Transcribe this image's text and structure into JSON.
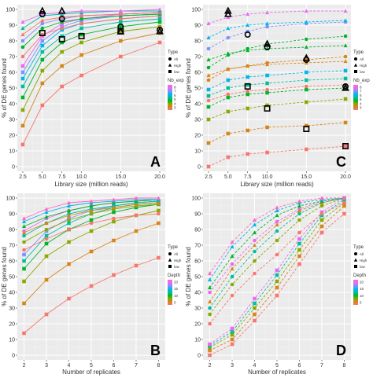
{
  "colors": {
    "panel_bg": "#ebebeb",
    "grid_major": "#ffffff",
    "grid_minor": "#f3f3f3",
    "gradient": [
      "#f8766d",
      "#d6851a",
      "#8ba800",
      "#00b52b",
      "#00bf9e",
      "#00b6eb",
      "#7c92ff",
      "#e76bf3",
      "#ff6ac1"
    ]
  },
  "chart_data": [
    {
      "id": "A",
      "type": "line",
      "panel_label": "A",
      "xlabel": "Library size (million reads)",
      "ylabel": "% of DE genes found",
      "x": [
        2.5,
        5.0,
        7.5,
        10.0,
        15.0,
        20.0
      ],
      "x_tick_labels": [
        "2.5",
        "5.0",
        "7.5",
        "10.0",
        "15.0",
        "20.0"
      ],
      "y_ticks": [
        0,
        10,
        20,
        30,
        40,
        50,
        60,
        70,
        80,
        90,
        100
      ],
      "xlim": [
        1.8,
        20.7
      ],
      "ylim": [
        -3,
        103
      ],
      "line_style": "solid",
      "legend": {
        "type_title": "Type",
        "type_items": [
          {
            "shape": "circle",
            "label": "All"
          },
          {
            "shape": "triangle",
            "label": "High"
          },
          {
            "shape": "square",
            "label": "low"
          }
        ],
        "color_title": "Nb_exp",
        "color_ticks": [
          "8",
          "7",
          "6",
          "5",
          "4",
          "3"
        ]
      },
      "series": [
        {
          "shape": "square",
          "color_index": 0,
          "values": [
            14,
            39,
            51,
            58,
            70,
            79
          ]
        },
        {
          "shape": "square",
          "color_index": 1,
          "values": [
            26,
            53,
            64,
            71,
            80,
            85
          ]
        },
        {
          "shape": "square",
          "color_index": 2,
          "values": [
            36,
            61,
            73,
            79,
            86,
            89
          ]
        },
        {
          "shape": "square",
          "color_index": 3,
          "values": [
            44,
            68,
            79,
            84,
            89,
            92
          ]
        },
        {
          "shape": "square",
          "color_index": 4,
          "values": [
            51,
            73,
            83,
            88,
            92,
            94
          ]
        },
        {
          "shape": "square",
          "color_index": 5,
          "values": [
            56,
            77,
            87,
            91,
            94,
            96
          ]
        },
        {
          "shape": "square",
          "color_index": 6,
          "values": [
            60,
            80,
            89,
            93,
            96,
            97
          ]
        },
        {
          "shape": "square",
          "color_index": 7,
          "values": [
            64,
            83,
            91,
            94,
            97,
            98
          ]
        },
        {
          "shape": "circle",
          "color_index": 0,
          "values": [
            70,
            84,
            88,
            91,
            94,
            96
          ]
        },
        {
          "shape": "circle",
          "color_index": 3,
          "values": [
            76,
            88,
            92,
            94,
            96,
            97
          ]
        },
        {
          "shape": "circle",
          "color_index": 6,
          "values": [
            80,
            91,
            94,
            96,
            97,
            98
          ]
        },
        {
          "shape": "triangle",
          "color_index": 0,
          "values": [
            84,
            93,
            95,
            96,
            97,
            98
          ]
        },
        {
          "shape": "triangle",
          "color_index": 4,
          "values": [
            88,
            96,
            97,
            98,
            99,
            99
          ]
        },
        {
          "shape": "triangle",
          "color_index": 7,
          "values": [
            92,
            97,
            98,
            99,
            99,
            100
          ]
        }
      ],
      "highlighted": [
        {
          "shape": "triangle",
          "x": 5.0,
          "y": 99
        },
        {
          "shape": "triangle",
          "x": 7.5,
          "y": 99
        },
        {
          "shape": "circle",
          "x": 5.0,
          "y": 97
        },
        {
          "shape": "circle",
          "x": 7.5,
          "y": 94
        },
        {
          "shape": "square",
          "x": 5.0,
          "y": 85
        },
        {
          "shape": "square",
          "x": 7.5,
          "y": 81
        },
        {
          "shape": "square",
          "x": 10.0,
          "y": 83
        },
        {
          "shape": "circle",
          "x": 15.0,
          "y": 89
        },
        {
          "shape": "triangle",
          "x": 15.0,
          "y": 86
        },
        {
          "shape": "square",
          "x": 15.0,
          "y": 86
        },
        {
          "shape": "circle",
          "x": 20.0,
          "y": 87
        },
        {
          "shape": "triangle",
          "x": 20.0,
          "y": 86
        }
      ]
    },
    {
      "id": "C",
      "type": "line",
      "panel_label": "C",
      "xlabel": "Library size (million reads)",
      "ylabel": "% of DE genes found",
      "x": [
        2.5,
        5.0,
        7.5,
        10.0,
        15.0,
        20.0
      ],
      "x_tick_labels": [
        "2.5",
        "5.0",
        "7.5",
        "10.0",
        "15.0",
        "20.0"
      ],
      "y_ticks": [
        0,
        10,
        20,
        30,
        40,
        50,
        60,
        70,
        80,
        90,
        100
      ],
      "xlim": [
        1.8,
        20.7
      ],
      "ylim": [
        -3,
        103
      ],
      "line_style": "dashed",
      "legend": {
        "type_title": "Type",
        "type_items": [
          {
            "shape": "circle",
            "label": "All"
          },
          {
            "shape": "triangle",
            "label": "High"
          },
          {
            "shape": "square",
            "label": "low"
          }
        ],
        "color_title": "Nb_exp",
        "color_ticks": [
          "8",
          "7",
          "6",
          "5",
          "4",
          "3"
        ]
      },
      "series": [
        {
          "shape": "square",
          "color_index": 0,
          "values": [
            0,
            6,
            8,
            9,
            11,
            13
          ]
        },
        {
          "shape": "square",
          "color_index": 1,
          "values": [
            15,
            21,
            23,
            25,
            26,
            28
          ]
        },
        {
          "shape": "square",
          "color_index": 2,
          "values": [
            30,
            35,
            37,
            39,
            41,
            43
          ]
        },
        {
          "shape": "square",
          "color_index": 3,
          "values": [
            38,
            44,
            46,
            47,
            49,
            50
          ]
        },
        {
          "shape": "square",
          "color_index": 4,
          "values": [
            45,
            50,
            52,
            53,
            55,
            56
          ]
        },
        {
          "shape": "square",
          "color_index": 5,
          "values": [
            49,
            55,
            57,
            58,
            60,
            61
          ]
        },
        {
          "shape": "circle",
          "color_index": 0,
          "values": [
            42,
            46,
            48,
            49,
            51,
            52
          ]
        },
        {
          "shape": "circle",
          "color_index": 1,
          "values": [
            55,
            62,
            64,
            66,
            68,
            70
          ]
        },
        {
          "shape": "circle",
          "color_index": 3,
          "values": [
            63,
            71,
            75,
            78,
            81,
            83
          ]
        },
        {
          "shape": "circle",
          "color_index": 6,
          "values": [
            75,
            82,
            86,
            89,
            91,
            92
          ]
        },
        {
          "shape": "triangle",
          "color_index": 1,
          "values": [
            58,
            62,
            64,
            65,
            66,
            67
          ]
        },
        {
          "shape": "triangle",
          "color_index": 3,
          "values": [
            68,
            72,
            74,
            75,
            76,
            77
          ]
        },
        {
          "shape": "triangle",
          "color_index": 5,
          "values": [
            82,
            88,
            90,
            91,
            92,
            93
          ]
        },
        {
          "shape": "triangle",
          "color_index": 7,
          "values": [
            91,
            95,
            97,
            98,
            99,
            99
          ]
        }
      ],
      "highlighted": [
        {
          "shape": "triangle",
          "x": 5.0,
          "y": 99
        },
        {
          "shape": "triangle",
          "x": 5.0,
          "y": 97
        },
        {
          "shape": "circle",
          "x": 7.5,
          "y": 84
        },
        {
          "shape": "triangle",
          "x": 10.0,
          "y": 78
        },
        {
          "shape": "circle",
          "x": 10.0,
          "y": 76
        },
        {
          "shape": "square",
          "x": 7.5,
          "y": 51
        },
        {
          "shape": "square",
          "x": 10.0,
          "y": 37
        },
        {
          "shape": "triangle",
          "x": 15.0,
          "y": 69
        },
        {
          "shape": "circle",
          "x": 15.0,
          "y": 68
        },
        {
          "shape": "square",
          "x": 15.0,
          "y": 24
        },
        {
          "shape": "circle",
          "x": 20.0,
          "y": 51
        },
        {
          "shape": "triangle",
          "x": 20.0,
          "y": 50
        },
        {
          "shape": "square",
          "x": 20.0,
          "y": 13
        }
      ]
    },
    {
      "id": "B",
      "type": "line",
      "panel_label": "B",
      "xlabel": "Number of replicates",
      "ylabel": "% of DE genes found",
      "x": [
        2,
        3,
        4,
        5,
        6,
        7,
        8
      ],
      "x_tick_labels": [
        "2",
        "3",
        "4",
        "5",
        "6",
        "7",
        "8"
      ],
      "y_ticks": [
        0,
        10,
        20,
        30,
        40,
        50,
        60,
        70,
        80,
        90,
        100
      ],
      "xlim": [
        1.7,
        8.3
      ],
      "ylim": [
        -3,
        103
      ],
      "line_style": "solid",
      "legend": {
        "type_title": "Type",
        "type_items": [
          {
            "shape": "circle",
            "label": "All"
          },
          {
            "shape": "triangle",
            "label": "High"
          },
          {
            "shape": "square",
            "label": "low"
          }
        ],
        "color_title": "Depth",
        "color_ticks": [
          "20",
          "15",
          "10",
          "5"
        ]
      },
      "series": [
        {
          "shape": "square",
          "color_index": 0,
          "values": [
            14,
            26,
            36,
            44,
            51,
            57,
            62
          ]
        },
        {
          "shape": "square",
          "color_index": 1,
          "values": [
            33,
            48,
            58,
            66,
            73,
            79,
            84
          ]
        },
        {
          "shape": "square",
          "color_index": 2,
          "values": [
            47,
            63,
            72,
            79,
            85,
            89,
            92
          ]
        },
        {
          "shape": "square",
          "color_index": 3,
          "values": [
            55,
            71,
            80,
            86,
            91,
            94,
            96
          ]
        },
        {
          "shape": "square",
          "color_index": 4,
          "values": [
            60,
            76,
            84,
            90,
            94,
            96,
            97
          ]
        },
        {
          "shape": "square",
          "color_index": 6,
          "values": [
            64,
            79,
            87,
            92,
            95,
            97,
            98
          ]
        },
        {
          "shape": "circle",
          "color_index": 0,
          "values": [
            67,
            74,
            80,
            84,
            87,
            89,
            90
          ]
        },
        {
          "shape": "circle",
          "color_index": 2,
          "values": [
            72,
            80,
            86,
            90,
            93,
            95,
            96
          ]
        },
        {
          "shape": "circle",
          "color_index": 4,
          "values": [
            76,
            84,
            90,
            93,
            95,
            97,
            98
          ]
        },
        {
          "shape": "circle",
          "color_index": 7,
          "values": [
            79,
            87,
            92,
            95,
            97,
            98,
            99
          ]
        },
        {
          "shape": "triangle",
          "color_index": 1,
          "values": [
            78,
            84,
            89,
            92,
            94,
            96,
            97
          ]
        },
        {
          "shape": "triangle",
          "color_index": 3,
          "values": [
            82,
            88,
            92,
            95,
            97,
            98,
            99
          ]
        },
        {
          "shape": "triangle",
          "color_index": 5,
          "values": [
            85,
            91,
            95,
            97,
            98,
            99,
            99
          ]
        },
        {
          "shape": "triangle",
          "color_index": 8,
          "values": [
            87,
            93,
            97,
            98,
            99,
            100,
            100
          ]
        }
      ],
      "highlighted": []
    },
    {
      "id": "D",
      "type": "line",
      "panel_label": "D",
      "xlabel": "Number of replicates",
      "ylabel": "% of DE genes found",
      "x": [
        2,
        3,
        4,
        5,
        6,
        7,
        8
      ],
      "x_tick_labels": [
        "2",
        "3",
        "4",
        "5",
        "6",
        "7",
        "8"
      ],
      "y_ticks": [
        0,
        10,
        20,
        30,
        40,
        50,
        60,
        70,
        80,
        90,
        100
      ],
      "xlim": [
        1.7,
        8.3
      ],
      "ylim": [
        -3,
        103
      ],
      "line_style": "dashed",
      "legend": {
        "type_title": "Type",
        "type_items": [
          {
            "shape": "circle",
            "label": "All"
          },
          {
            "shape": "triangle",
            "label": "High"
          },
          {
            "shape": "square",
            "label": "low"
          }
        ],
        "color_title": "Depth",
        "color_ticks": [
          "20",
          "15",
          "10",
          "5"
        ]
      },
      "series": [
        {
          "shape": "square",
          "color_index": 0,
          "values": [
            0,
            7,
            22,
            38,
            58,
            78,
            90
          ]
        },
        {
          "shape": "square",
          "color_index": 1,
          "values": [
            3,
            10,
            26,
            43,
            63,
            82,
            95
          ]
        },
        {
          "shape": "square",
          "color_index": 2,
          "values": [
            5,
            13,
            30,
            47,
            67,
            86,
            97
          ]
        },
        {
          "shape": "square",
          "color_index": 4,
          "values": [
            6,
            15,
            33,
            51,
            71,
            89,
            99
          ]
        },
        {
          "shape": "square",
          "color_index": 7,
          "values": [
            7,
            17,
            36,
            54,
            74,
            91,
            100
          ]
        },
        {
          "shape": "circle",
          "color_index": 0,
          "values": [
            20,
            38,
            52,
            64,
            78,
            90,
            97
          ]
        },
        {
          "shape": "circle",
          "color_index": 2,
          "values": [
            26,
            45,
            60,
            73,
            86,
            95,
            100
          ]
        },
        {
          "shape": "circle",
          "color_index": 4,
          "values": [
            30,
            50,
            66,
            79,
            90,
            97,
            100
          ]
        },
        {
          "shape": "circle",
          "color_index": 7,
          "values": [
            40,
            58,
            73,
            85,
            93,
            98,
            100
          ]
        },
        {
          "shape": "triangle",
          "color_index": 1,
          "values": [
            34,
            55,
            70,
            83,
            92,
            97,
            100
          ]
        },
        {
          "shape": "triangle",
          "color_index": 3,
          "values": [
            43,
            63,
            78,
            89,
            95,
            98,
            100
          ]
        },
        {
          "shape": "triangle",
          "color_index": 5,
          "values": [
            48,
            69,
            83,
            92,
            97,
            99,
            100
          ]
        },
        {
          "shape": "triangle",
          "color_index": 8,
          "values": [
            52,
            72,
            86,
            94,
            98,
            100,
            100
          ]
        }
      ],
      "highlighted": []
    }
  ]
}
